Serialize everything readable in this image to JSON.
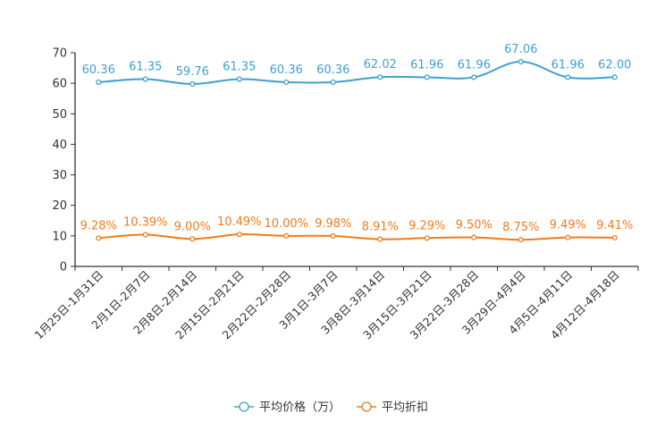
{
  "chart_data": {
    "type": "line",
    "title": "",
    "xlabel": "",
    "ylabel": "",
    "ylim": [
      0,
      70
    ],
    "yticks": [
      "0",
      "10",
      "20",
      "30",
      "40",
      "50",
      "60",
      "70"
    ],
    "grid": false,
    "legend_position": "bottom-center",
    "categories": [
      "1月25日-1月31日",
      "2月1日-2月7日",
      "2月8日-2月14日",
      "2月15日-2月21日",
      "2月22日-2月28日",
      "3月1日-3月7日",
      "3月8日-3月14日",
      "3月15日-3月21日",
      "3月22日-3月28日",
      "3月29日-4月4日",
      "4月5日-4月11日",
      "4月12日-4月18日"
    ],
    "series": [
      {
        "name": "平均价格（万）",
        "color": "#3fa0cf",
        "values": [
          60.36,
          61.35,
          59.76,
          61.35,
          60.36,
          60.36,
          62.02,
          61.96,
          61.96,
          67.06,
          61.96,
          62.0
        ],
        "labels": [
          "60.36",
          "61.35",
          "59.76",
          "61.35",
          "60.36",
          "60.36",
          "62.02",
          "61.96",
          "61.96",
          "67.06",
          "61.96",
          "62.00"
        ]
      },
      {
        "name": "平均折扣",
        "color": "#f07c1c",
        "values": [
          9.28,
          10.39,
          9.0,
          10.49,
          10.0,
          9.98,
          8.91,
          9.29,
          9.5,
          8.75,
          9.49,
          9.41
        ],
        "labels": [
          "9.28%",
          "10.39%",
          "9.00%",
          "10.49%",
          "10.00%",
          "9.98%",
          "8.91%",
          "9.29%",
          "9.50%",
          "8.75%",
          "9.49%",
          "9.41%"
        ]
      }
    ]
  }
}
